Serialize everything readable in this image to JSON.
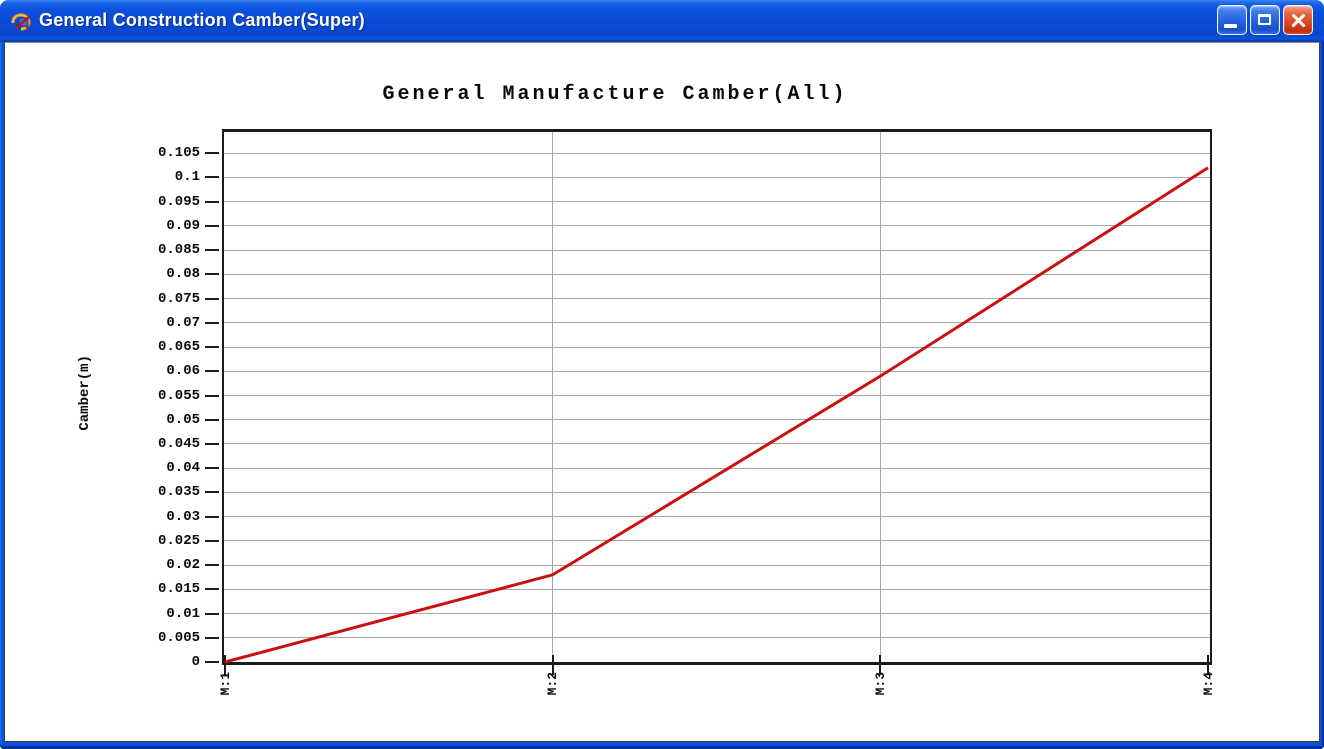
{
  "window": {
    "title": "General Construction Camber(Super)",
    "controls": [
      "minimize",
      "maximize",
      "close"
    ]
  },
  "chart_data": {
    "type": "line",
    "title": "General Manufacture Camber(All)",
    "xlabel": "",
    "ylabel": "Camber(m)",
    "categories": [
      "M:1",
      "M:2",
      "M:3",
      "M:4"
    ],
    "series": [
      {
        "name": "Camber",
        "values": [
          0,
          0.018,
          0.059,
          0.102
        ],
        "color": "#c81212"
      }
    ],
    "ylim": [
      0,
      0.11
    ],
    "y_ticks": [
      0,
      0.005,
      0.01,
      0.015,
      0.02,
      0.025,
      0.03,
      0.035,
      0.04,
      0.045,
      0.05,
      0.055,
      0.06,
      0.065,
      0.07,
      0.075,
      0.08,
      0.085,
      0.09,
      0.095,
      0.1,
      0.105
    ],
    "y_tick_labels": [
      "0",
      "0.005",
      "0.01",
      "0.015",
      "0.02",
      "0.025",
      "0.03",
      "0.035",
      "0.04",
      "0.045",
      "0.05",
      "0.055",
      "0.06",
      "0.065",
      "0.07",
      "0.075",
      "0.08",
      "0.085",
      "0.09",
      "0.095",
      "0.1",
      "0.105"
    ],
    "grid": {
      "horizontal": true,
      "vertical_inner": true
    },
    "legend": "none",
    "line_width": 3,
    "colors": {
      "grid": "#a8a8a8",
      "axis": "#1c1c1c",
      "text": "#0a0a0a",
      "plot_background": "#ffffff"
    }
  }
}
